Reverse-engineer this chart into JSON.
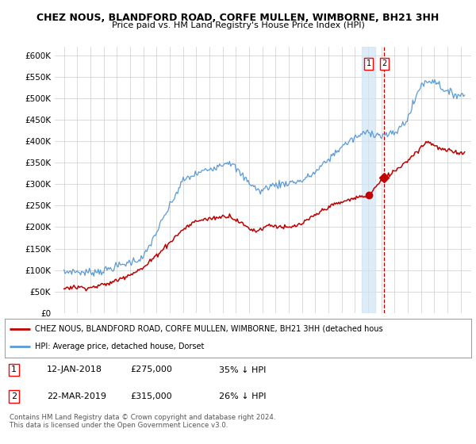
{
  "title_line1": "CHEZ NOUS, BLANDFORD ROAD, CORFE MULLEN, WIMBORNE, BH21 3HH",
  "title_line2": "Price paid vs. HM Land Registry's House Price Index (HPI)",
  "ylim": [
    0,
    620000
  ],
  "yticks": [
    0,
    50000,
    100000,
    150000,
    200000,
    250000,
    300000,
    350000,
    400000,
    450000,
    500000,
    550000,
    600000
  ],
  "ytick_labels": [
    "£0",
    "£50K",
    "£100K",
    "£150K",
    "£200K",
    "£250K",
    "£300K",
    "£350K",
    "£400K",
    "£450K",
    "£500K",
    "£550K",
    "£600K"
  ],
  "hpi_color": "#5b9bd5",
  "price_color": "#c00000",
  "transaction1_date": 2018.04,
  "transaction1_price": 275000,
  "transaction2_date": 2019.22,
  "transaction2_price": 315000,
  "legend_label1": "CHEZ NOUS, BLANDFORD ROAD, CORFE MULLEN, WIMBORNE, BH21 3HH (detached hous",
  "legend_label2": "HPI: Average price, detached house, Dorset",
  "table_row1": [
    "1",
    "12-JAN-2018",
    "£275,000",
    "35% ↓ HPI"
  ],
  "table_row2": [
    "2",
    "22-MAR-2019",
    "£315,000",
    "26% ↓ HPI"
  ],
  "footnote": "Contains HM Land Registry data © Crown copyright and database right 2024.\nThis data is licensed under the Open Government Licence v3.0.",
  "background_color": "#ffffff",
  "grid_color": "#cccccc"
}
